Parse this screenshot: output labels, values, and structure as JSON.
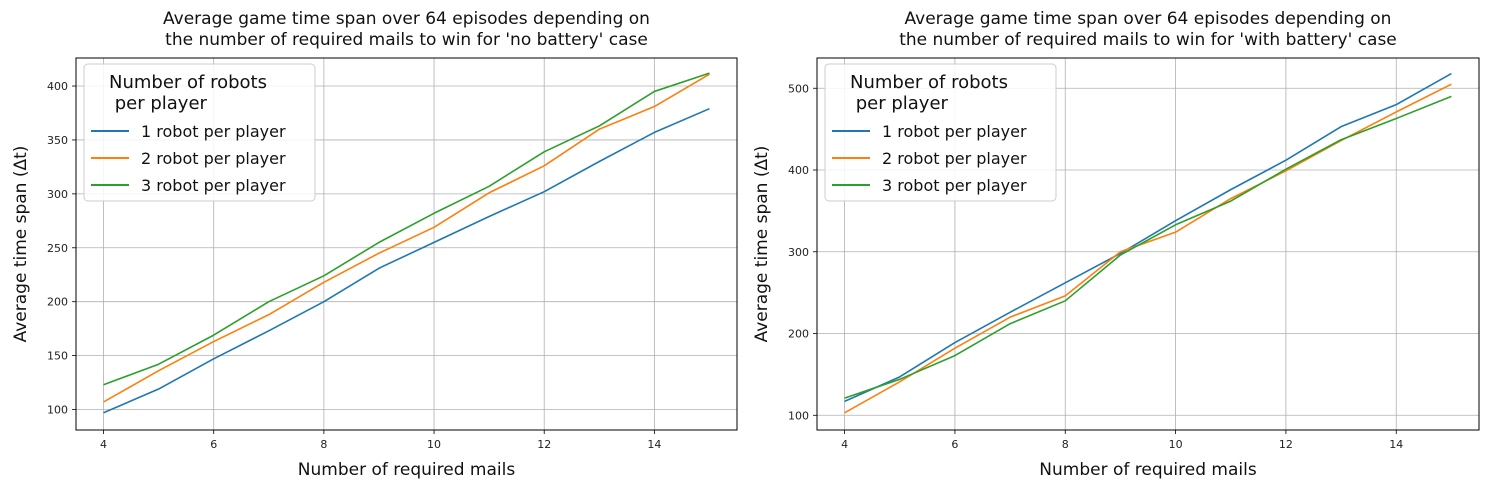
{
  "chart_data": [
    {
      "type": "line",
      "title_lines": [
        "Average game time span over 64 episodes depending on",
        "the number of required mails to win for 'no battery' case"
      ],
      "xlabel": "Number of required mails",
      "ylabel": "Average time span (Δt)",
      "x": [
        4,
        5,
        6,
        7,
        8,
        9,
        10,
        11,
        12,
        13,
        14,
        15
      ],
      "xticks": [
        4,
        6,
        8,
        10,
        12,
        14
      ],
      "yticks": [
        100,
        150,
        200,
        250,
        300,
        350,
        400
      ],
      "xlim": [
        3.5,
        15.5
      ],
      "ylim": [
        81,
        426
      ],
      "grid": true,
      "legend_title_lines": [
        "Number of robots",
        " per player"
      ],
      "legend_position": "upper-left",
      "series": [
        {
          "name": "1 robot per player",
          "color": "#1f77b4",
          "values": [
            97,
            119,
            147,
            173,
            200,
            231,
            255,
            279,
            302,
            330,
            357,
            379
          ]
        },
        {
          "name": "2 robot per player",
          "color": "#ff7f0e",
          "values": [
            107,
            136,
            163,
            188,
            218,
            245,
            269,
            301,
            326,
            360,
            381,
            411
          ]
        },
        {
          "name": "3 robot per player",
          "color": "#2ca02c",
          "values": [
            123,
            142,
            169,
            200,
            224,
            255,
            282,
            307,
            339,
            363,
            395,
            412
          ]
        }
      ]
    },
    {
      "type": "line",
      "title_lines": [
        "Average game time span over 64 episodes depending on",
        "the number of required mails to win for 'with battery' case"
      ],
      "xlabel": "Number of required mails",
      "ylabel": "Average time span (Δt)",
      "x": [
        4,
        5,
        6,
        7,
        8,
        9,
        10,
        11,
        12,
        13,
        14,
        15
      ],
      "xticks": [
        4,
        6,
        8,
        10,
        12,
        14
      ],
      "yticks": [
        100,
        200,
        300,
        400,
        500
      ],
      "xlim": [
        3.5,
        15.5
      ],
      "ylim": [
        82,
        537
      ],
      "grid": true,
      "legend_title_lines": [
        "Number of robots",
        " per player"
      ],
      "legend_position": "upper-left",
      "series": [
        {
          "name": "1 robot per player",
          "color": "#1f77b4",
          "values": [
            117,
            147,
            189,
            226,
            262,
            298,
            338,
            376,
            412,
            453,
            480,
            518
          ]
        },
        {
          "name": "2 robot per player",
          "color": "#ff7f0e",
          "values": [
            103,
            141,
            182,
            220,
            246,
            300,
            324,
            365,
            399,
            436,
            471,
            505
          ]
        },
        {
          "name": "3 robot per player",
          "color": "#2ca02c",
          "values": [
            121,
            144,
            173,
            212,
            240,
            296,
            333,
            362,
            401,
            437,
            463,
            490
          ]
        }
      ]
    }
  ]
}
